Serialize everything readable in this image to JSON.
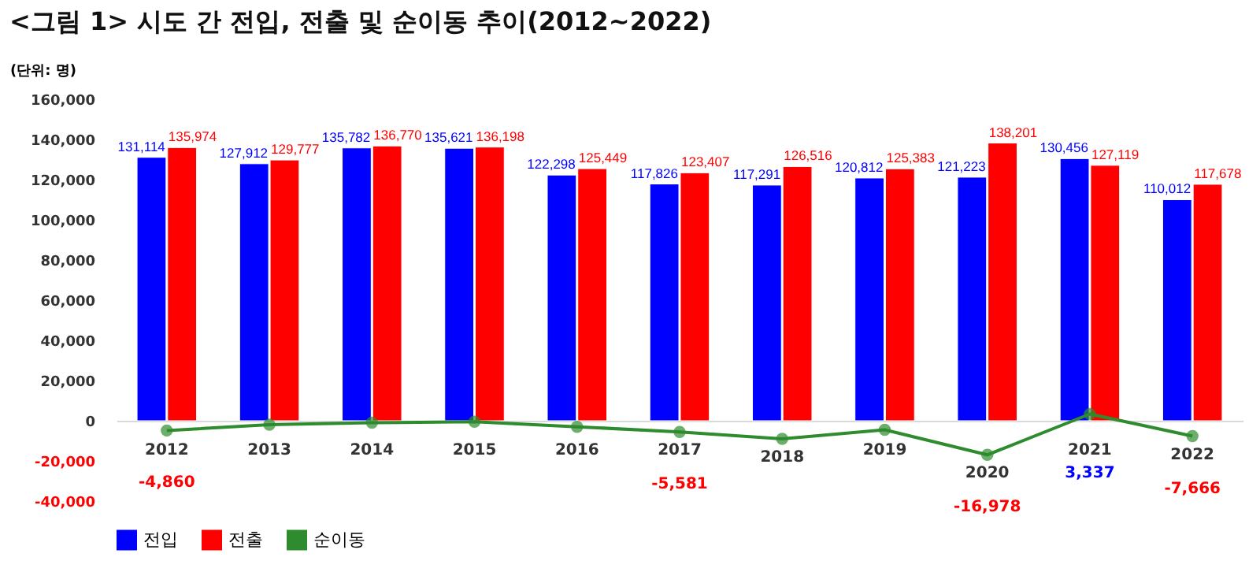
{
  "chart_data": {
    "type": "bar",
    "title": "<그림 1> 시도 간 전입, 전출 및 순이동 추이(2012~2022)",
    "annotations": [
      "(단위: 명)"
    ],
    "categories": [
      "2012",
      "2013",
      "2014",
      "2015",
      "2016",
      "2017",
      "2018",
      "2019",
      "2020",
      "2021",
      "2022"
    ],
    "series": [
      {
        "name": "전입",
        "color": "#0000ff",
        "values": [
          131114,
          127912,
          135782,
          135621,
          122298,
          117826,
          117291,
          120812,
          121223,
          130456,
          110012
        ],
        "value_labels": [
          "131,114",
          "127,912",
          "135,782",
          "135,621",
          "122,298",
          "117,826",
          "117,291",
          "120,812",
          "121,223",
          "130,456",
          "110,012"
        ]
      },
      {
        "name": "전출",
        "color": "#ff0000",
        "values": [
          135974,
          129777,
          136770,
          136198,
          125449,
          123407,
          126516,
          125383,
          138201,
          127119,
          117678
        ],
        "value_labels": [
          "135,974",
          "129,777",
          "136,770",
          "136,198",
          "125,449",
          "123,407",
          "126,516",
          "125,383",
          "138,201",
          "127,119",
          "117,678"
        ]
      },
      {
        "name": "순이동",
        "type": "line",
        "color": "#2e8b2e",
        "marker": "circle",
        "values": [
          -4860,
          -2000,
          -1000,
          -500,
          -3000,
          -5581,
          -9000,
          -4500,
          -16978,
          3337,
          -7666
        ],
        "value_labels": [
          "-4,860",
          null,
          null,
          null,
          null,
          "-5,581",
          null,
          null,
          "-16,978",
          "3,337",
          "-7,666"
        ]
      }
    ],
    "ylim": [
      -40000,
      160000
    ],
    "yticks": [
      {
        "value": -40000,
        "label": "-40,000"
      },
      {
        "value": -20000,
        "label": "-20,000"
      },
      {
        "value": 0,
        "label": "0"
      },
      {
        "value": 20000,
        "label": "20,000"
      },
      {
        "value": 40000,
        "label": "40,000"
      },
      {
        "value": 60000,
        "label": "60,000"
      },
      {
        "value": 80000,
        "label": "80,000"
      },
      {
        "value": 100000,
        "label": "100,000"
      },
      {
        "value": 120000,
        "label": "120,000"
      },
      {
        "value": 140000,
        "label": "140,000"
      },
      {
        "value": 160000,
        "label": "160,000"
      }
    ],
    "grid": false,
    "legend": "bottom"
  }
}
